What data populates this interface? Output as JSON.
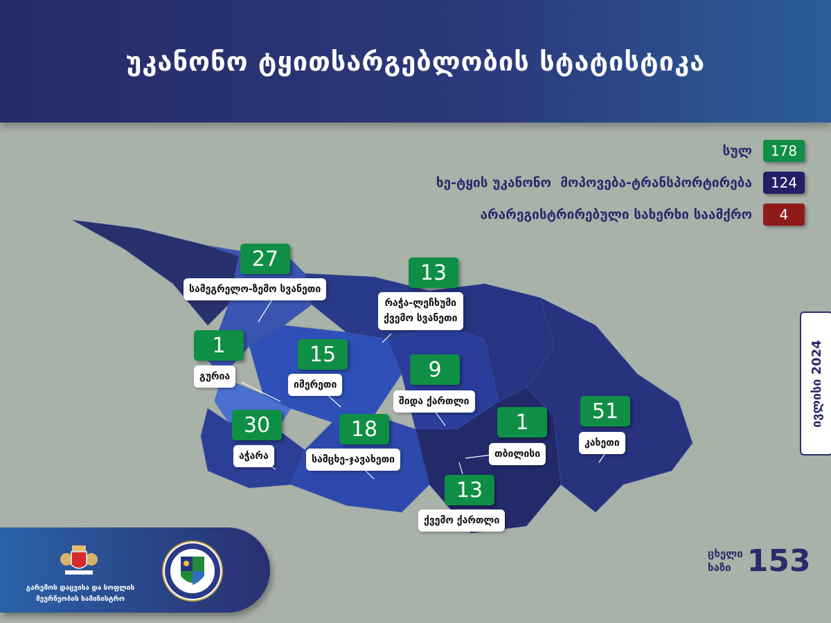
{
  "header": {
    "title": "უკანონო ტყითსარგებლობის სტატისტიკა"
  },
  "legend": [
    {
      "label": "სულ",
      "value": "178",
      "color": "#0f8f45"
    },
    {
      "label": "ხე-ტყის უკანონო  მოპოვება-ტრანსპორტირება",
      "value": "124",
      "color": "#221f66"
    },
    {
      "label": "არარეგისტრირებული სახერხი საამქრო",
      "value": "4",
      "color": "#8e1a1a"
    }
  ],
  "regions": [
    {
      "name": "სამეგრელო-ზემო სვანეთი",
      "value": "27"
    },
    {
      "name": "რაჭა-ლეჩხუმი",
      "name2": "ქვემო სვანეთი",
      "value": "13"
    },
    {
      "name": "გურია",
      "value": "1"
    },
    {
      "name": "იმერეთი",
      "value": "15"
    },
    {
      "name": "შიდა ქართლი",
      "value": "9"
    },
    {
      "name": "აჭარა",
      "value": "30"
    },
    {
      "name": "სამცხე-ჯავახეთი",
      "value": "18"
    },
    {
      "name": "თბილისი",
      "value": "1"
    },
    {
      "name": "კახეთი",
      "value": "51"
    },
    {
      "name": "ქვემო ქართლი",
      "value": "13"
    }
  ],
  "date": "ივლისი 2024",
  "footer": {
    "ministry_line1": "გარემოს დაცვისა და სოფლის",
    "ministry_line2": "მეურნეობის სამინისტრო"
  },
  "hotline": {
    "line1": "ცხელი",
    "line2": "ხაზი",
    "number": "153"
  }
}
